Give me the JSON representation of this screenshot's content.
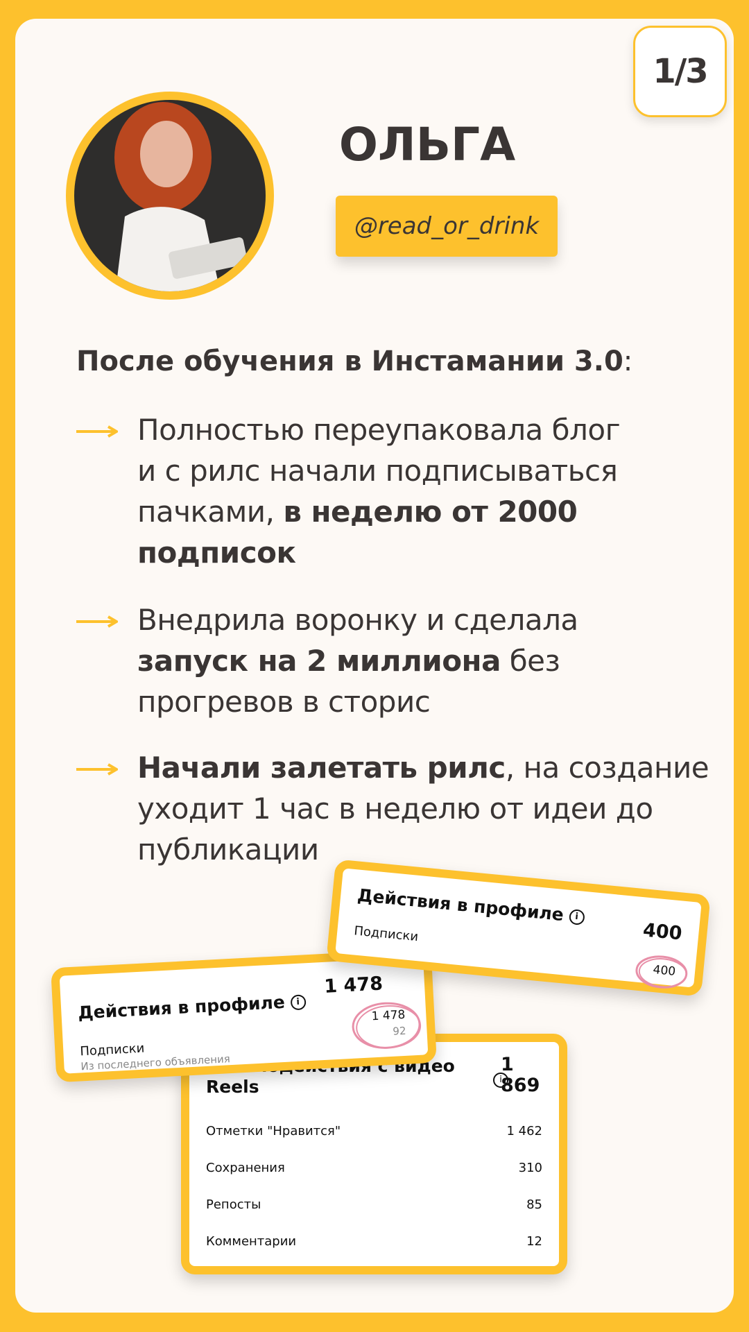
{
  "page_number": "1/3",
  "profile": {
    "name": "ОЛЬГА",
    "handle": "@read_or_drink"
  },
  "intro": [
    {
      "text": "После обучения в Инстамании 3.0",
      "bold": true
    },
    {
      "text": ":",
      "bold": false
    }
  ],
  "bullets": [
    {
      "lines": [
        [
          {
            "text": "Полностью переупаковала блог",
            "bold": false
          }
        ],
        [
          {
            "text": "и с рилс начали подписываться",
            "bold": false
          }
        ],
        [
          {
            "text": "пачками, ",
            "bold": false
          },
          {
            "text": "в неделю от 2000",
            "bold": true
          }
        ],
        [
          {
            "text": "подписок",
            "bold": true
          }
        ]
      ]
    },
    {
      "lines": [
        [
          {
            "text": "Внедрила воронку и сделала",
            "bold": false
          }
        ],
        [
          {
            "text": "запуск на 2 миллиона",
            "bold": true
          },
          {
            "text": " без",
            "bold": false
          }
        ],
        [
          {
            "text": "прогревов в сторис",
            "bold": false
          }
        ]
      ]
    },
    {
      "lines": [
        [
          {
            "text": "Начали залетать рилс",
            "bold": true
          },
          {
            "text": ", на создание",
            "bold": false
          }
        ],
        [
          {
            "text": "уходит 1 час в неделю от идеи до",
            "bold": false
          }
        ],
        [
          {
            "text": "публикации",
            "bold": false
          }
        ]
      ]
    }
  ],
  "cards": [
    {
      "title": "Действия в профиле",
      "value": "400",
      "label": "Подписки",
      "circled": "400"
    },
    {
      "title": "Действия в профиле",
      "value": "1 478",
      "label": "Подписки",
      "sublabel": "Из последнего объявления",
      "circled": "1 478",
      "circled_sub": "92"
    },
    {
      "title": "Взаимодействия с видео Reels",
      "value": "1 869",
      "rows": [
        [
          "Отметки \"Нравится\"",
          "1 462"
        ],
        [
          "Сохранения",
          "310"
        ],
        [
          "Репосты",
          "85"
        ],
        [
          "Комментарии",
          "12"
        ]
      ]
    }
  ]
}
